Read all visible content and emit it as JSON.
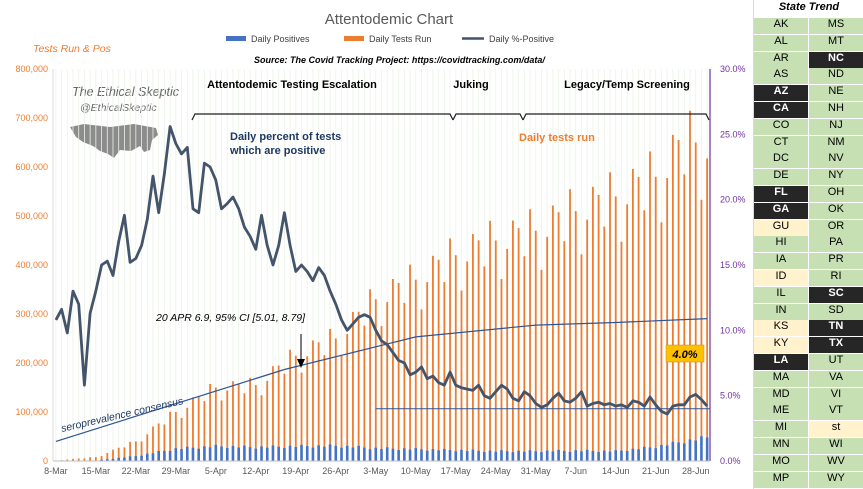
{
  "colors": {
    "positives": "#4472c4",
    "tests": "#ed7d31",
    "pct": "#44546a",
    "title": "#595959",
    "orange_text": "#ed7d31",
    "navy_text": "#1f3864",
    "up": "#c6e0b4",
    "down": "#262626",
    "flat": "#fff2cc"
  },
  "chart_data": {
    "type": "bar",
    "title": "Attentodemic Chart",
    "source": "Source: The Covid Tracking Project: https://covidtracking.com/data/",
    "left_axis_title": "Tests Run & Pos",
    "legend": [
      "Daily Positives",
      "Daily Tests Run",
      "Daily %-Positive"
    ],
    "x_tick_labels": [
      "8-Mar",
      "15-Mar",
      "22-Mar",
      "29-Mar",
      "5-Apr",
      "12-Apr",
      "19-Apr",
      "26-Apr",
      "3-May",
      "10-May",
      "17-May",
      "24-May",
      "31-May",
      "7-Jun",
      "14-Jun",
      "21-Jun",
      "28-Jun"
    ],
    "left_ticks": [
      "0",
      "100,000",
      "200,000",
      "300,000",
      "400,000",
      "500,000",
      "600,000",
      "700,000",
      "800,000"
    ],
    "right_ticks": [
      "0.0%",
      "5.0%",
      "10.0%",
      "15.0%",
      "20.0%",
      "25.0%",
      "30.0%"
    ],
    "ylim_left": [
      0,
      800000
    ],
    "ylim_right": [
      0,
      30
    ],
    "days": 115,
    "tests_anchors": [
      [
        0,
        1000
      ],
      [
        7,
        8000
      ],
      [
        14,
        40000
      ],
      [
        21,
        100000
      ],
      [
        28,
        150000
      ],
      [
        35,
        155000
      ],
      [
        42,
        215000
      ],
      [
        49,
        250000
      ],
      [
        56,
        330000
      ],
      [
        63,
        370000
      ],
      [
        70,
        420000
      ],
      [
        77,
        450000
      ],
      [
        84,
        470000
      ],
      [
        91,
        510000
      ],
      [
        98,
        540000
      ],
      [
        105,
        580000
      ],
      [
        110,
        650000
      ],
      [
        114,
        650000
      ]
    ],
    "positives_anchors": [
      [
        0,
        50
      ],
      [
        7,
        1000
      ],
      [
        14,
        10000
      ],
      [
        21,
        25000
      ],
      [
        28,
        30000
      ],
      [
        35,
        28000
      ],
      [
        42,
        30000
      ],
      [
        49,
        31000
      ],
      [
        56,
        26000
      ],
      [
        63,
        24000
      ],
      [
        70,
        22000
      ],
      [
        77,
        20000
      ],
      [
        84,
        20000
      ],
      [
        91,
        21000
      ],
      [
        98,
        20000
      ],
      [
        105,
        29000
      ],
      [
        110,
        40000
      ],
      [
        114,
        48000
      ]
    ],
    "pct_points": [
      [
        0,
        10.8
      ],
      [
        1,
        11.6
      ],
      [
        2,
        9.8
      ],
      [
        3,
        13.0
      ],
      [
        4,
        12.0
      ],
      [
        5,
        5.8
      ],
      [
        6,
        11.3
      ],
      [
        7,
        13.0
      ],
      [
        8,
        15.0
      ],
      [
        9,
        15.3
      ],
      [
        10,
        14.2
      ],
      [
        11,
        16.8
      ],
      [
        12,
        18.8
      ],
      [
        13,
        15.2
      ],
      [
        14,
        15.5
      ],
      [
        15,
        16.5
      ],
      [
        16,
        18.5
      ],
      [
        17,
        21.8
      ],
      [
        18,
        19.0
      ],
      [
        19,
        22.0
      ],
      [
        20,
        25.6
      ],
      [
        21,
        24.3
      ],
      [
        22,
        23.5
      ],
      [
        23,
        24.0
      ],
      [
        24,
        19.3
      ],
      [
        25,
        19.0
      ],
      [
        26,
        22.8
      ],
      [
        27,
        22.5
      ],
      [
        28,
        21.5
      ],
      [
        29,
        19.3
      ],
      [
        30,
        19.7
      ],
      [
        31,
        20.2
      ],
      [
        32,
        19.3
      ],
      [
        33,
        17.9
      ],
      [
        34,
        17.2
      ],
      [
        35,
        16.2
      ],
      [
        36,
        18.8
      ],
      [
        37,
        16.5
      ],
      [
        38,
        15.0
      ],
      [
        39,
        16.5
      ],
      [
        40,
        19.0
      ],
      [
        41,
        16.5
      ],
      [
        42,
        14.5
      ],
      [
        43,
        15.0
      ],
      [
        44,
        14.5
      ],
      [
        45,
        13.8
      ],
      [
        46,
        14.8
      ],
      [
        47,
        14.2
      ],
      [
        48,
        13.0
      ],
      [
        49,
        12.0
      ],
      [
        50,
        10.8
      ],
      [
        51,
        10.0
      ],
      [
        52,
        10.5
      ],
      [
        53,
        11.0
      ],
      [
        54,
        11.2
      ],
      [
        55,
        11.0
      ],
      [
        56,
        10.0
      ],
      [
        57,
        9.2
      ],
      [
        58,
        8.9
      ],
      [
        59,
        8.3
      ],
      [
        60,
        7.7
      ],
      [
        61,
        7.5
      ],
      [
        62,
        6.6
      ],
      [
        63,
        6.8
      ],
      [
        64,
        7.2
      ],
      [
        65,
        6.3
      ],
      [
        66,
        6.5
      ],
      [
        67,
        6.0
      ],
      [
        68,
        5.8
      ],
      [
        69,
        6.8
      ],
      [
        70,
        5.8
      ],
      [
        71,
        5.6
      ],
      [
        72,
        5.5
      ],
      [
        73,
        5.4
      ],
      [
        74,
        5.8
      ],
      [
        75,
        5.0
      ],
      [
        76,
        4.8
      ],
      [
        77,
        5.3
      ],
      [
        78,
        5.8
      ],
      [
        79,
        5.5
      ],
      [
        80,
        4.8
      ],
      [
        81,
        4.6
      ],
      [
        82,
        5.3
      ],
      [
        83,
        5.0
      ],
      [
        84,
        4.4
      ],
      [
        85,
        4.1
      ],
      [
        86,
        4.3
      ],
      [
        87,
        4.8
      ],
      [
        88,
        5.2
      ],
      [
        89,
        4.6
      ],
      [
        90,
        4.5
      ],
      [
        91,
        4.8
      ],
      [
        92,
        5.3
      ],
      [
        93,
        4.2
      ],
      [
        94,
        4.4
      ],
      [
        95,
        4.5
      ],
      [
        96,
        4.3
      ],
      [
        97,
        4.4
      ],
      [
        98,
        4.2
      ],
      [
        99,
        4.3
      ],
      [
        100,
        4.1
      ],
      [
        101,
        4.6
      ],
      [
        102,
        4.5
      ],
      [
        103,
        4.2
      ],
      [
        104,
        4.9
      ],
      [
        105,
        4.3
      ],
      [
        106,
        3.8
      ],
      [
        107,
        3.6
      ],
      [
        108,
        4.2
      ],
      [
        109,
        4.3
      ],
      [
        110,
        4.3
      ],
      [
        111,
        4.9
      ],
      [
        112,
        5.1
      ],
      [
        113,
        4.7
      ],
      [
        114,
        4.2
      ]
    ],
    "legacy_line": [
      [
        0,
        1.5
      ],
      [
        40,
        7.0
      ],
      [
        63,
        9.5
      ],
      [
        84,
        10.4
      ],
      [
        98,
        10.6
      ],
      [
        114,
        10.9
      ]
    ],
    "hline_value": 4.0,
    "hline_start_day": 56,
    "annotations": {
      "watermark_title": "The Ethical Skeptic",
      "watermark_handle": "@EthicalSkeptic",
      "phase1": "Attentodemic Testing Escalation",
      "phase2": "Juking",
      "phase3": "Legacy/Temp Screening",
      "pct_note_1": "Daily percent of tests",
      "pct_note_2": "which are positive",
      "tests_note": "Daily tests run",
      "ci_note": "20 APR 6.9, 95% CI [5.01, 8.79]",
      "sero_note": "seroprevalence consensus",
      "callout": "4.0%"
    }
  },
  "state_trend": {
    "title": "State Trend",
    "rows": [
      [
        {
          "s": "AK",
          "t": "up"
        },
        {
          "s": "MS",
          "t": "up"
        }
      ],
      [
        {
          "s": "AL",
          "t": "up"
        },
        {
          "s": "MT",
          "t": "up"
        }
      ],
      [
        {
          "s": "AR",
          "t": "up"
        },
        {
          "s": "NC",
          "t": "down"
        }
      ],
      [
        {
          "s": "AS",
          "t": "up"
        },
        {
          "s": "ND",
          "t": "up"
        }
      ],
      [
        {
          "s": "AZ",
          "t": "down"
        },
        {
          "s": "NE",
          "t": "up"
        }
      ],
      [
        {
          "s": "CA",
          "t": "down"
        },
        {
          "s": "NH",
          "t": "up"
        }
      ],
      [
        {
          "s": "CO",
          "t": "up"
        },
        {
          "s": "NJ",
          "t": "up"
        }
      ],
      [
        {
          "s": "CT",
          "t": "up"
        },
        {
          "s": "NM",
          "t": "up"
        }
      ],
      [
        {
          "s": "DC",
          "t": "up"
        },
        {
          "s": "NV",
          "t": "up"
        }
      ],
      [
        {
          "s": "DE",
          "t": "up"
        },
        {
          "s": "NY",
          "t": "up"
        }
      ],
      [
        {
          "s": "FL",
          "t": "down"
        },
        {
          "s": "OH",
          "t": "up"
        }
      ],
      [
        {
          "s": "GA",
          "t": "down"
        },
        {
          "s": "OK",
          "t": "up"
        }
      ],
      [
        {
          "s": "GU",
          "t": "flat"
        },
        {
          "s": "OR",
          "t": "up"
        }
      ],
      [
        {
          "s": "HI",
          "t": "up"
        },
        {
          "s": "PA",
          "t": "up"
        }
      ],
      [
        {
          "s": "IA",
          "t": "up"
        },
        {
          "s": "PR",
          "t": "up"
        }
      ],
      [
        {
          "s": "ID",
          "t": "flat"
        },
        {
          "s": "RI",
          "t": "up"
        }
      ],
      [
        {
          "s": "IL",
          "t": "up"
        },
        {
          "s": "SC",
          "t": "down"
        }
      ],
      [
        {
          "s": "IN",
          "t": "up"
        },
        {
          "s": "SD",
          "t": "up"
        }
      ],
      [
        {
          "s": "KS",
          "t": "flat"
        },
        {
          "s": "TN",
          "t": "down"
        }
      ],
      [
        {
          "s": "KY",
          "t": "flat"
        },
        {
          "s": "TX",
          "t": "down"
        }
      ],
      [
        {
          "s": "LA",
          "t": "down"
        },
        {
          "s": "UT",
          "t": "up"
        }
      ],
      [
        {
          "s": "MA",
          "t": "up"
        },
        {
          "s": "VA",
          "t": "up"
        }
      ],
      [
        {
          "s": "MD",
          "t": "up"
        },
        {
          "s": "VI",
          "t": "up"
        }
      ],
      [
        {
          "s": "ME",
          "t": "up"
        },
        {
          "s": "VT",
          "t": "up"
        }
      ],
      [
        {
          "s": "MI",
          "t": "up"
        },
        {
          "s": "st",
          "t": "flat"
        }
      ],
      [
        {
          "s": "MN",
          "t": "up"
        },
        {
          "s": "WI",
          "t": "up"
        }
      ],
      [
        {
          "s": "MO",
          "t": "up"
        },
        {
          "s": "WV",
          "t": "up"
        }
      ],
      [
        {
          "s": "MP",
          "t": "up"
        },
        {
          "s": "WY",
          "t": "up"
        }
      ]
    ]
  }
}
